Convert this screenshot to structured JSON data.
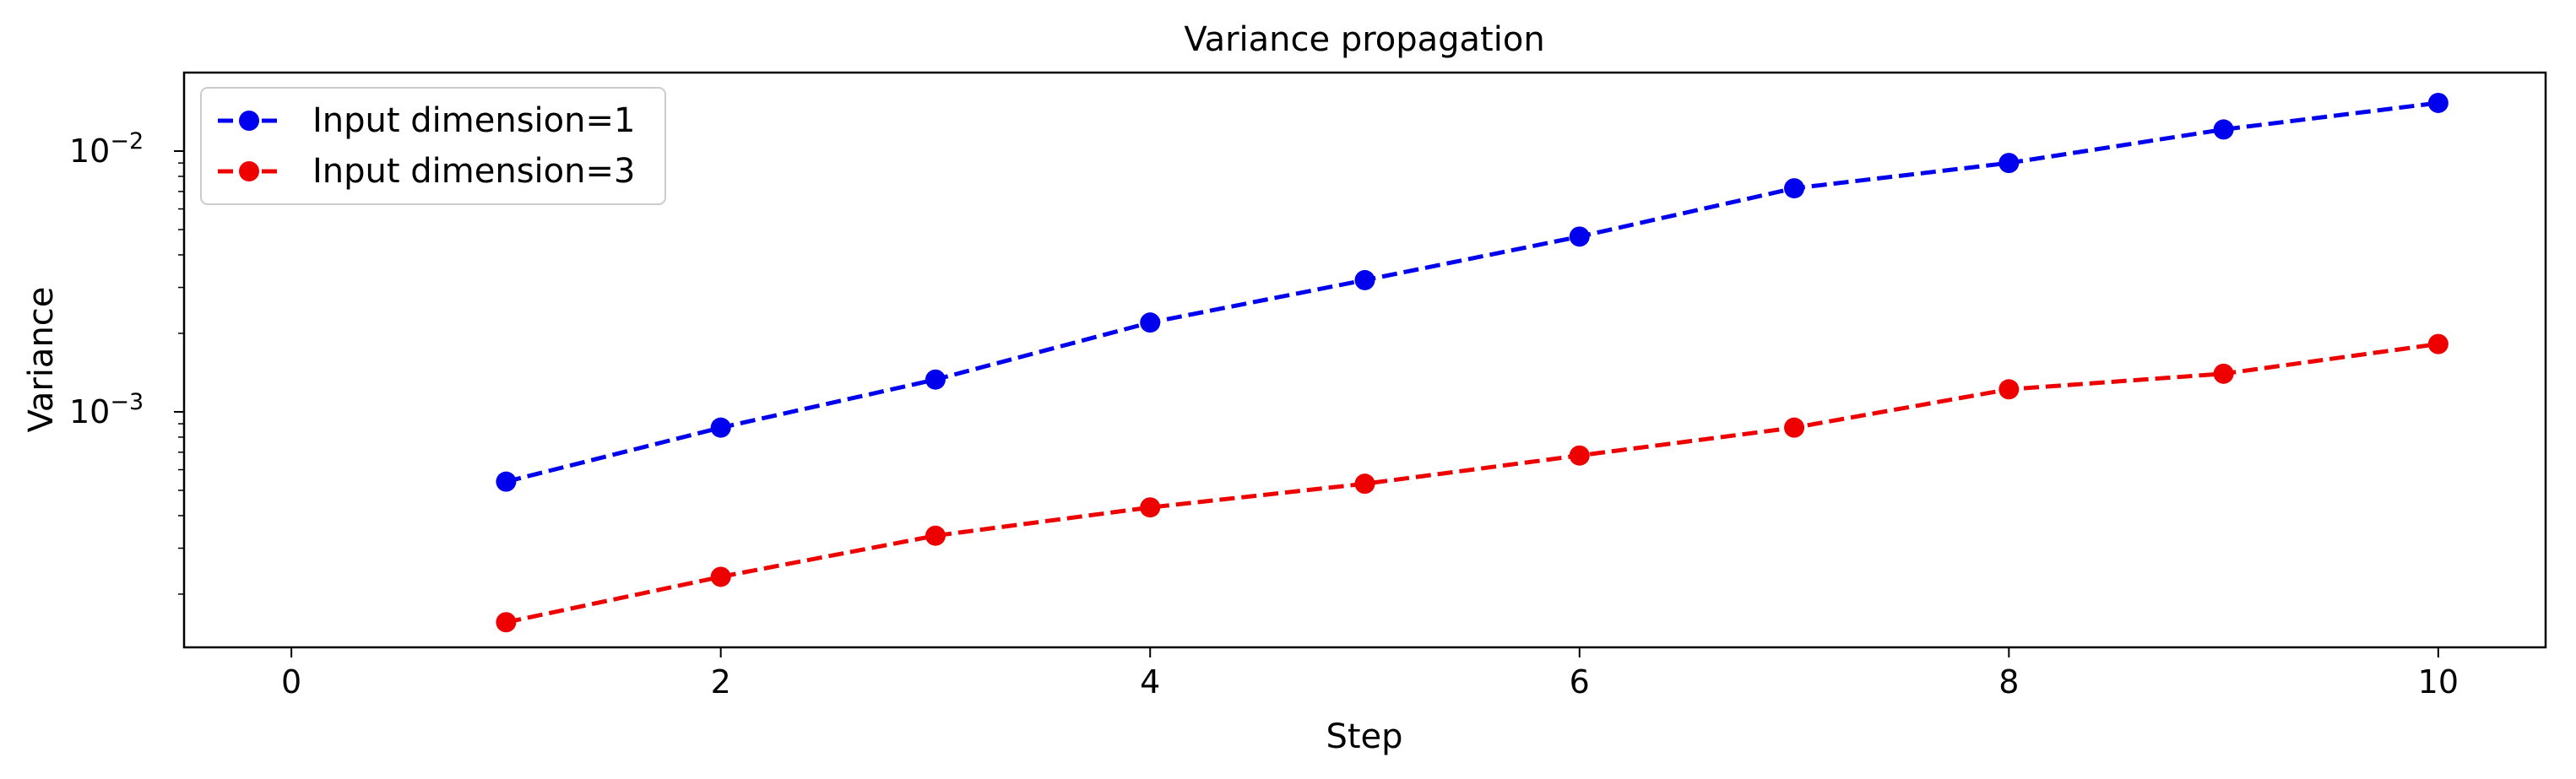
{
  "chart_data": {
    "type": "line",
    "title": "Variance propagation",
    "xlabel": "Step",
    "ylabel": "Variance",
    "xlim": [
      -0.5,
      10.5
    ],
    "ylim": [
      0.000125,
      0.02
    ],
    "yscale": "log",
    "grid": false,
    "legend_position": "top-left",
    "x_ticks": [
      {
        "value": 0,
        "label": "0"
      },
      {
        "value": 2,
        "label": "2"
      },
      {
        "value": 4,
        "label": "4"
      },
      {
        "value": 6,
        "label": "6"
      },
      {
        "value": 8,
        "label": "8"
      },
      {
        "value": 10,
        "label": "10"
      }
    ],
    "y_ticks": [
      {
        "value": 0.01,
        "base": "10",
        "exp": "−2"
      },
      {
        "value": 0.001,
        "base": "10",
        "exp": "−3"
      }
    ],
    "x": [
      1,
      2,
      3,
      4,
      5,
      6,
      7,
      8,
      9,
      10
    ],
    "series": [
      {
        "name": "Input dimension=1",
        "color": "#0000ee",
        "values": [
          0.00054,
          0.00087,
          0.00133,
          0.0022,
          0.0032,
          0.0047,
          0.0072,
          0.009,
          0.0121,
          0.0153
        ]
      },
      {
        "name": "Input dimension=3",
        "color": "#ee0000",
        "values": [
          0.000156,
          0.000233,
          0.000335,
          0.00043,
          0.00053,
          0.00068,
          0.00087,
          0.00122,
          0.0014,
          0.00182
        ]
      }
    ]
  }
}
